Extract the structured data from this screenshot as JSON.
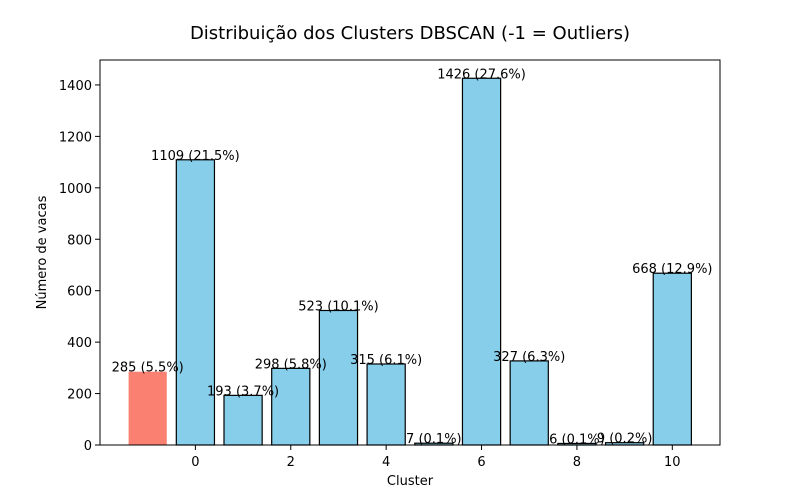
{
  "chart_data": {
    "type": "bar",
    "title": "Distribuição dos Clusters DBSCAN (-1 = Outliers)",
    "xlabel": "Cluster",
    "ylabel": "Número de vacas",
    "x": [
      -1,
      0,
      1,
      2,
      3,
      4,
      5,
      6,
      7,
      8,
      9,
      10
    ],
    "values": [
      285,
      1109,
      193,
      298,
      523,
      315,
      7,
      1426,
      327,
      6,
      9,
      668
    ],
    "data_labels": [
      "285 (5.5%)",
      "1109 (21.5%)",
      "193 (3.7%)",
      "298 (5.8%)",
      "523 (10.1%)",
      "315 (6.1%)",
      "7 (0.1%)",
      "1426 (27.6%)",
      "327 (6.3%)",
      "6 (0.1%)",
      "9 (0.2%)",
      "668 (12.9%)"
    ],
    "xticks": [
      0,
      2,
      4,
      6,
      8,
      10
    ],
    "yticks": [
      0,
      200,
      400,
      600,
      800,
      1000,
      1200,
      1400
    ],
    "xlim": [
      -2.0,
      11.0
    ],
    "ylim": [
      0,
      1497
    ],
    "bar_width": 0.8,
    "grid": false,
    "legend": "none",
    "colors": {
      "outlier_bar": "#fa8072",
      "cluster_bar": "#87ceeb",
      "bar_edge": "#000000"
    }
  }
}
